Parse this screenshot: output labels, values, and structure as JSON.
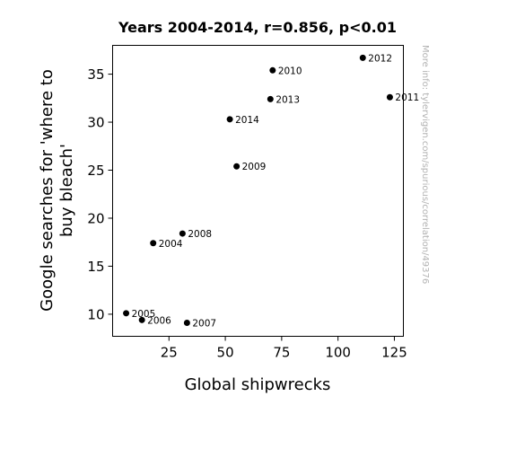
{
  "chart_data": {
    "type": "scatter",
    "title": "Years 2004-2014, r=0.856, p<0.01",
    "xlabel": "Global shipwrecks",
    "ylabel": [
      "Google searches for 'where to",
      "buy bleach'"
    ],
    "xlim": [
      0,
      129
    ],
    "ylim": [
      7.7,
      38
    ],
    "xticks": [
      25,
      50,
      75,
      100,
      125
    ],
    "yticks": [
      10,
      15,
      20,
      25,
      30,
      35
    ],
    "grid": false,
    "marker_color": "#000000",
    "points": [
      {
        "label": "2004",
        "x": 18,
        "y": 17.4
      },
      {
        "label": "2005",
        "x": 6,
        "y": 10.1
      },
      {
        "label": "2006",
        "x": 13,
        "y": 9.4
      },
      {
        "label": "2007",
        "x": 33,
        "y": 9.1
      },
      {
        "label": "2008",
        "x": 31,
        "y": 18.4
      },
      {
        "label": "2009",
        "x": 55,
        "y": 25.4
      },
      {
        "label": "2010",
        "x": 71,
        "y": 35.4
      },
      {
        "label": "2011",
        "x": 123,
        "y": 32.6
      },
      {
        "label": "2012",
        "x": 111,
        "y": 36.7
      },
      {
        "label": "2013",
        "x": 70,
        "y": 32.4
      },
      {
        "label": "2014",
        "x": 52,
        "y": 30.3
      }
    ]
  },
  "watermark": "More info: tylervigen.com/spurious/correlation/49376"
}
